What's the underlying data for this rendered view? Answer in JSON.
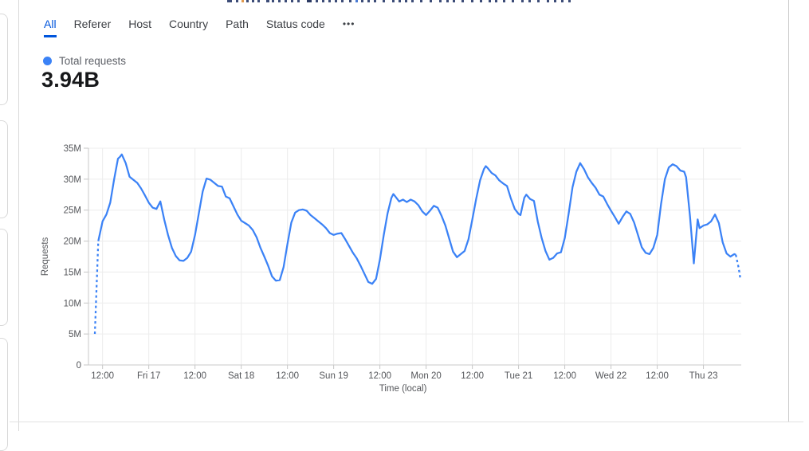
{
  "tabs": {
    "items": [
      {
        "label": "All",
        "active": true
      },
      {
        "label": "Referer",
        "active": false
      },
      {
        "label": "Host",
        "active": false
      },
      {
        "label": "Country",
        "active": false
      },
      {
        "label": "Path",
        "active": false
      },
      {
        "label": "Status code",
        "active": false
      }
    ],
    "more_icon": "•••",
    "active_color": "#0055dc"
  },
  "legend": {
    "series_label": "Total requests",
    "dot_color": "#3b82f6"
  },
  "summary": {
    "total_value": "3.94B"
  },
  "chart_data": {
    "type": "line",
    "title": "Total requests",
    "total": "3.94B",
    "xlabel": "Time (local)",
    "ylabel": "Requests",
    "ylim_millions": [
      0,
      35
    ],
    "grid": true,
    "legend_position": "top-left",
    "y_tick_labels": [
      "0",
      "5M",
      "10M",
      "15M",
      "20M",
      "25M",
      "30M",
      "35M"
    ],
    "x_ticks": [
      {
        "t": 2,
        "label": "12:00"
      },
      {
        "t": 14,
        "label": "Fri 17"
      },
      {
        "t": 26,
        "label": "12:00"
      },
      {
        "t": 38,
        "label": "Sat 18"
      },
      {
        "t": 50,
        "label": "12:00"
      },
      {
        "t": 62,
        "label": "Sun 19"
      },
      {
        "t": 74,
        "label": "12:00"
      },
      {
        "t": 86,
        "label": "Mon 20"
      },
      {
        "t": 98,
        "label": "12:00"
      },
      {
        "t": 110,
        "label": "Tue 21"
      },
      {
        "t": 122,
        "label": "12:00"
      },
      {
        "t": 134,
        "label": "Wed 22"
      },
      {
        "t": 146,
        "label": "12:00"
      },
      {
        "t": 158,
        "label": "Thu 23"
      }
    ],
    "x_unit": "hours",
    "series": [
      {
        "name": "Total requests",
        "color": "#3b82f6",
        "values_unit": "millions of requests per hour",
        "dashed_head": [
          [
            0,
            5.0
          ],
          [
            0.9,
            20.0
          ]
        ],
        "points": [
          [
            0.9,
            20.0
          ],
          [
            2,
            23.2
          ],
          [
            3,
            24.3
          ],
          [
            4,
            26.2
          ],
          [
            5,
            30.0
          ],
          [
            6,
            33.3
          ],
          [
            6.5,
            33.6
          ],
          [
            7,
            34.0
          ],
          [
            8,
            32.6
          ],
          [
            9,
            30.4
          ],
          [
            10,
            29.9
          ],
          [
            11,
            29.4
          ],
          [
            12,
            28.5
          ],
          [
            13,
            27.4
          ],
          [
            14,
            26.2
          ],
          [
            15,
            25.4
          ],
          [
            16,
            25.2
          ],
          [
            17,
            26.4
          ],
          [
            18,
            23.5
          ],
          [
            19,
            21.0
          ],
          [
            20,
            18.9
          ],
          [
            21,
            17.6
          ],
          [
            22,
            16.9
          ],
          [
            23,
            16.8
          ],
          [
            24,
            17.3
          ],
          [
            25,
            18.3
          ],
          [
            26,
            21.0
          ],
          [
            27,
            24.5
          ],
          [
            28,
            28.0
          ],
          [
            29,
            30.1
          ],
          [
            30,
            29.9
          ],
          [
            31,
            29.4
          ],
          [
            32,
            28.9
          ],
          [
            33,
            28.8
          ],
          [
            34,
            27.2
          ],
          [
            35,
            26.9
          ],
          [
            36,
            25.6
          ],
          [
            37,
            24.3
          ],
          [
            38,
            23.3
          ],
          [
            39,
            22.9
          ],
          [
            40,
            22.5
          ],
          [
            41,
            21.8
          ],
          [
            42,
            20.6
          ],
          [
            43,
            18.9
          ],
          [
            44,
            17.5
          ],
          [
            45,
            16.0
          ],
          [
            46,
            14.3
          ],
          [
            47,
            13.6
          ],
          [
            48,
            13.7
          ],
          [
            49,
            15.8
          ],
          [
            50,
            19.5
          ],
          [
            51,
            23.0
          ],
          [
            52,
            24.6
          ],
          [
            53,
            25.0
          ],
          [
            54,
            25.1
          ],
          [
            55,
            24.9
          ],
          [
            56,
            24.2
          ],
          [
            57,
            23.7
          ],
          [
            58,
            23.2
          ],
          [
            59,
            22.7
          ],
          [
            60,
            22.1
          ],
          [
            61,
            21.3
          ],
          [
            62,
            21.0
          ],
          [
            63,
            21.2
          ],
          [
            64,
            21.3
          ],
          [
            65,
            20.3
          ],
          [
            66,
            19.2
          ],
          [
            67,
            18.1
          ],
          [
            68,
            17.2
          ],
          [
            69,
            16.0
          ],
          [
            70,
            14.7
          ],
          [
            71,
            13.4
          ],
          [
            72,
            13.1
          ],
          [
            73,
            13.9
          ],
          [
            74,
            17.0
          ],
          [
            75,
            21.0
          ],
          [
            76,
            24.5
          ],
          [
            77,
            27.0
          ],
          [
            77.5,
            27.6
          ],
          [
            78,
            27.2
          ],
          [
            79,
            26.4
          ],
          [
            80,
            26.7
          ],
          [
            81,
            26.3
          ],
          [
            82,
            26.7
          ],
          [
            83,
            26.4
          ],
          [
            84,
            25.8
          ],
          [
            85,
            24.8
          ],
          [
            86,
            24.2
          ],
          [
            87,
            24.9
          ],
          [
            88,
            25.7
          ],
          [
            89,
            25.4
          ],
          [
            90,
            24.1
          ],
          [
            91,
            22.5
          ],
          [
            92,
            20.4
          ],
          [
            93,
            18.3
          ],
          [
            94,
            17.4
          ],
          [
            95,
            17.9
          ],
          [
            96,
            18.4
          ],
          [
            97,
            20.3
          ],
          [
            98,
            23.5
          ],
          [
            99,
            26.8
          ],
          [
            100,
            29.8
          ],
          [
            101,
            31.6
          ],
          [
            101.5,
            32.1
          ],
          [
            102,
            31.8
          ],
          [
            103,
            31.0
          ],
          [
            104,
            30.6
          ],
          [
            105,
            29.8
          ],
          [
            106,
            29.3
          ],
          [
            107,
            28.9
          ],
          [
            108,
            26.9
          ],
          [
            109,
            25.2
          ],
          [
            110,
            24.4
          ],
          [
            110.5,
            24.2
          ],
          [
            111.5,
            27.0
          ],
          [
            112,
            27.5
          ],
          [
            113,
            26.8
          ],
          [
            114,
            26.5
          ],
          [
            115,
            23.1
          ],
          [
            116,
            20.5
          ],
          [
            117,
            18.4
          ],
          [
            118,
            17.0
          ],
          [
            119,
            17.3
          ],
          [
            120,
            18.0
          ],
          [
            121,
            18.2
          ],
          [
            122,
            20.5
          ],
          [
            123,
            24.4
          ],
          [
            124,
            28.7
          ],
          [
            125,
            31.2
          ],
          [
            126,
            32.6
          ],
          [
            127,
            31.6
          ],
          [
            128,
            30.3
          ],
          [
            129,
            29.4
          ],
          [
            130,
            28.6
          ],
          [
            131,
            27.5
          ],
          [
            132,
            27.2
          ],
          [
            133,
            26.0
          ],
          [
            134,
            24.9
          ],
          [
            135,
            23.9
          ],
          [
            136,
            22.8
          ],
          [
            137,
            23.9
          ],
          [
            138,
            24.8
          ],
          [
            139,
            24.4
          ],
          [
            140,
            23.0
          ],
          [
            141,
            21.0
          ],
          [
            142,
            19.0
          ],
          [
            143,
            18.1
          ],
          [
            144,
            17.9
          ],
          [
            145,
            18.9
          ],
          [
            146,
            21.0
          ],
          [
            147,
            26.0
          ],
          [
            148,
            30.0
          ],
          [
            149,
            31.9
          ],
          [
            150,
            32.4
          ],
          [
            151,
            32.1
          ],
          [
            152,
            31.4
          ],
          [
            153,
            31.2
          ],
          [
            153.5,
            30.3
          ],
          [
            154.5,
            24.0
          ],
          [
            155.5,
            16.4
          ],
          [
            156.5,
            23.5
          ],
          [
            157,
            22.1
          ],
          [
            158,
            22.5
          ],
          [
            159,
            22.7
          ],
          [
            160,
            23.2
          ],
          [
            161,
            24.3
          ],
          [
            162,
            22.9
          ],
          [
            163,
            19.8
          ],
          [
            164,
            18.0
          ],
          [
            165,
            17.5
          ],
          [
            166,
            17.9
          ],
          [
            166.4,
            17.8
          ]
        ],
        "dashed_tail": [
          [
            166.4,
            17.8
          ],
          [
            167.2,
            15.5
          ],
          [
            167.6,
            13.8
          ]
        ]
      }
    ]
  },
  "top_fragments": [
    [
      285,
      6,
      "#3d4d78"
    ],
    [
      296,
      3,
      "#3d4d78"
    ],
    [
      303,
      3,
      "#e09a4e"
    ],
    [
      309,
      3,
      "#3d4d78"
    ],
    [
      316,
      3,
      "#3d4d78"
    ],
    [
      323,
      3,
      "#3d4d78"
    ],
    [
      334,
      4,
      "#3d4d78"
    ],
    [
      341,
      3,
      "#3d4d78"
    ],
    [
      349,
      3,
      "#3d4d78"
    ],
    [
      357,
      3,
      "#3d4d78"
    ],
    [
      365,
      3,
      "#3d4d78"
    ],
    [
      373,
      3,
      "#3d4d78"
    ],
    [
      385,
      6,
      "#2c3a63"
    ],
    [
      396,
      3,
      "#3d4d78"
    ],
    [
      404,
      3,
      "#3d4d78"
    ],
    [
      412,
      3,
      "#3d4d78"
    ],
    [
      420,
      3,
      "#3d4d78"
    ],
    [
      428,
      3,
      "#3d4d78"
    ],
    [
      438,
      3,
      "#3d4d78"
    ],
    [
      446,
      3,
      "#4a7bd4"
    ],
    [
      453,
      3,
      "#3d4d78"
    ],
    [
      461,
      3,
      "#3d4d78"
    ],
    [
      469,
      3,
      "#3d4d78"
    ],
    [
      480,
      3,
      "#3d4d78"
    ],
    [
      492,
      3,
      "#3d4d78"
    ],
    [
      500,
      3,
      "#3d4d78"
    ],
    [
      508,
      3,
      "#3d4d78"
    ],
    [
      516,
      3,
      "#3d4d78"
    ],
    [
      527,
      3,
      "#3d4d78"
    ],
    [
      539,
      3,
      "#3d4d78"
    ],
    [
      551,
      3,
      "#3d4d78"
    ],
    [
      560,
      3,
      "#3d4d78"
    ],
    [
      568,
      3,
      "#3d4d78"
    ],
    [
      579,
      3,
      "#3d4d78"
    ],
    [
      591,
      3,
      "#3d4d78"
    ],
    [
      602,
      3,
      "#3d4d78"
    ],
    [
      613,
      3,
      "#3d4d78"
    ],
    [
      621,
      3,
      "#3d4d78"
    ],
    [
      631,
      3,
      "#3d4d78"
    ],
    [
      642,
      3,
      "#3d4d78"
    ],
    [
      654,
      3,
      "#3d4d78"
    ],
    [
      663,
      3,
      "#3d4d78"
    ],
    [
      674,
      3,
      "#3d4d78"
    ],
    [
      686,
      3,
      "#3d4d78"
    ],
    [
      695,
      3,
      "#3d4d78"
    ],
    [
      704,
      3,
      "#3d4d78"
    ],
    [
      713,
      3,
      "#3d4d78"
    ]
  ]
}
